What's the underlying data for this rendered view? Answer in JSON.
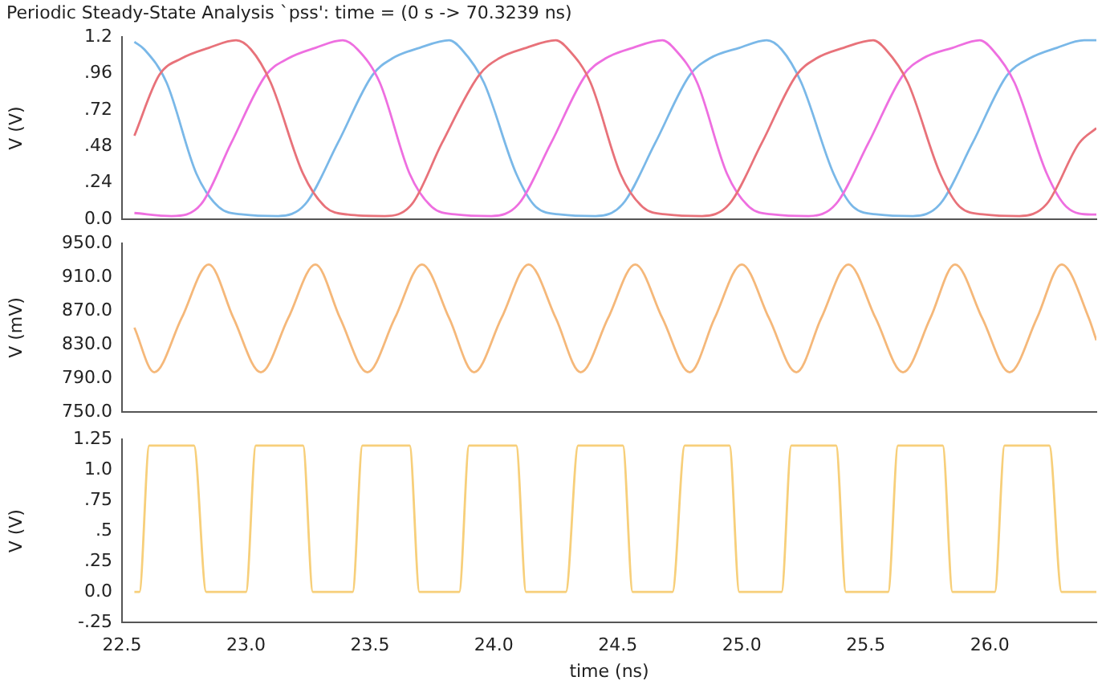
{
  "chart_data": [
    {
      "type": "line",
      "title": "Periodic Steady-State Analysis `pss': time = (0 s -> 70.3239 ns)",
      "ylabel": "V (V)",
      "xlim": [
        22.5,
        26.43
      ],
      "ylim": [
        0,
        1.2
      ],
      "yticks": [
        {
          "value": 0,
          "label": "0.0"
        },
        {
          "value": 0.24,
          "label": ".24"
        },
        {
          "value": 0.48,
          "label": ".48"
        },
        {
          "value": 0.72,
          "label": ".72"
        },
        {
          "value": 0.96,
          "label": ".96"
        },
        {
          "value": 1.2,
          "label": "1.2"
        }
      ],
      "tick_labels": "y",
      "series": [
        {
          "color": "#e8727a",
          "x": [
            22.55,
            22.65,
            22.74,
            22.85,
            22.96,
            23.02,
            23.1,
            23.23,
            23.32,
            23.41,
            23.56,
            23.67,
            23.79,
            23.94,
            24.02,
            24.13,
            24.25,
            24.3,
            24.39,
            24.51,
            24.6,
            24.7,
            24.84,
            24.95,
            25.08,
            25.22,
            25.3,
            25.41,
            25.53,
            25.58,
            25.67,
            25.8,
            25.88,
            25.98,
            26.12,
            26.23,
            26.36,
            26.43
          ],
          "values": [
            0.55,
            0.95,
            1.06,
            1.13,
            1.18,
            1.12,
            0.9,
            0.3,
            0.08,
            0.03,
            0.02,
            0.1,
            0.5,
            0.95,
            1.06,
            1.13,
            1.18,
            1.12,
            0.9,
            0.3,
            0.08,
            0.03,
            0.02,
            0.1,
            0.5,
            0.95,
            1.06,
            1.13,
            1.18,
            1.12,
            0.9,
            0.3,
            0.08,
            0.03,
            0.02,
            0.1,
            0.5,
            0.6
          ]
        },
        {
          "color": "#ee6fe0",
          "x": [
            22.55,
            22.7,
            22.82,
            22.94,
            23.08,
            23.17,
            23.28,
            23.39,
            23.45,
            23.54,
            23.66,
            23.75,
            23.85,
            23.99,
            24.1,
            24.23,
            24.37,
            24.45,
            24.56,
            24.68,
            24.73,
            24.82,
            24.94,
            25.03,
            25.13,
            25.27,
            25.38,
            25.51,
            25.65,
            25.73,
            25.85,
            25.96,
            26.01,
            26.1,
            26.23,
            26.31,
            26.41,
            26.43
          ],
          "values": [
            0.04,
            0.02,
            0.1,
            0.5,
            0.95,
            1.06,
            1.13,
            1.18,
            1.12,
            0.9,
            0.3,
            0.08,
            0.03,
            0.02,
            0.1,
            0.5,
            0.95,
            1.06,
            1.13,
            1.18,
            1.12,
            0.9,
            0.3,
            0.08,
            0.03,
            0.02,
            0.1,
            0.5,
            0.95,
            1.06,
            1.13,
            1.18,
            1.12,
            0.9,
            0.3,
            0.08,
            0.03,
            0.03
          ]
        },
        {
          "color": "#7ab8e8",
          "x": [
            22.55,
            22.59,
            22.68,
            22.8,
            22.89,
            22.99,
            23.13,
            23.24,
            23.37,
            23.51,
            23.59,
            23.7,
            23.82,
            23.87,
            23.96,
            24.09,
            24.17,
            24.27,
            24.41,
            24.52,
            24.65,
            24.79,
            24.87,
            24.99,
            25.1,
            25.16,
            25.24,
            25.37,
            25.45,
            25.55,
            25.69,
            25.8,
            25.93,
            26.07,
            26.16,
            26.27,
            26.38,
            26.43
          ],
          "values": [
            1.17,
            1.12,
            0.9,
            0.3,
            0.08,
            0.03,
            0.02,
            0.1,
            0.5,
            0.95,
            1.06,
            1.13,
            1.18,
            1.12,
            0.9,
            0.3,
            0.08,
            0.03,
            0.02,
            0.1,
            0.5,
            0.95,
            1.06,
            1.13,
            1.18,
            1.12,
            0.9,
            0.3,
            0.08,
            0.03,
            0.02,
            0.1,
            0.5,
            0.95,
            1.06,
            1.13,
            1.18,
            1.18
          ]
        }
      ]
    },
    {
      "type": "line",
      "ylabel": "V (mV)",
      "xlim": [
        22.5,
        26.43
      ],
      "ylim": [
        750,
        950
      ],
      "yticks": [
        {
          "value": 750,
          "label": "750.0"
        },
        {
          "value": 790,
          "label": "790.0"
        },
        {
          "value": 830,
          "label": "830.0"
        },
        {
          "value": 870,
          "label": "870.0"
        },
        {
          "value": 910,
          "label": "910.0"
        },
        {
          "value": 950,
          "label": "950.0"
        }
      ],
      "tick_labels": "y",
      "series": [
        {
          "color": "#f5b87a",
          "x": [
            22.55,
            22.63,
            22.74,
            22.85,
            22.95,
            23.06,
            23.17,
            23.28,
            23.38,
            23.49,
            23.6,
            23.71,
            23.82,
            23.92,
            24.03,
            24.14,
            24.25,
            24.35,
            24.46,
            24.57,
            24.68,
            24.79,
            24.89,
            25.0,
            25.11,
            25.22,
            25.32,
            25.43,
            25.54,
            25.65,
            25.76,
            25.86,
            25.97,
            26.08,
            26.19,
            26.29,
            26.4,
            26.43
          ],
          "values": [
            850,
            797,
            861,
            925,
            861,
            797,
            861,
            925,
            861,
            797,
            861,
            925,
            861,
            797,
            861,
            925,
            861,
            797,
            861,
            925,
            861,
            797,
            861,
            925,
            861,
            797,
            861,
            925,
            861,
            797,
            861,
            925,
            861,
            797,
            861,
            925,
            861,
            835
          ]
        }
      ]
    },
    {
      "type": "line",
      "ylabel": "V (V)",
      "xlabel": "time (ns)",
      "xlim": [
        22.5,
        26.43
      ],
      "xticks": [
        {
          "value": 22.5,
          "label": "22.5"
        },
        {
          "value": 23,
          "label": "23.0"
        },
        {
          "value": 23.5,
          "label": "23.5"
        },
        {
          "value": 24,
          "label": "24.0"
        },
        {
          "value": 24.5,
          "label": "24.5"
        },
        {
          "value": 25,
          "label": "25.0"
        },
        {
          "value": 25.5,
          "label": "25.5"
        },
        {
          "value": 26,
          "label": "26.0"
        }
      ],
      "ylim": [
        -0.25,
        1.25
      ],
      "yticks": [
        {
          "value": -0.25,
          "label": "-.25"
        },
        {
          "value": 0,
          "label": "0.0"
        },
        {
          "value": 0.25,
          "label": ".25"
        },
        {
          "value": 0.5,
          "label": ".5"
        },
        {
          "value": 0.75,
          "label": ".75"
        },
        {
          "value": 1,
          "label": "1.0"
        },
        {
          "value": 1.25,
          "label": "1.25"
        }
      ],
      "series": [
        {
          "color": "#f7cf7a",
          "x": [
            22.55,
            22.57,
            22.61,
            22.79,
            22.84,
            23.0,
            23.04,
            23.23,
            23.27,
            23.43,
            23.47,
            23.66,
            23.7,
            23.86,
            23.9,
            24.09,
            24.13,
            24.29,
            24.34,
            24.52,
            24.56,
            24.72,
            24.77,
            24.95,
            24.99,
            25.16,
            25.2,
            25.38,
            25.42,
            25.59,
            25.63,
            25.81,
            25.85,
            26.02,
            26.06,
            26.24,
            26.29,
            26.43
          ],
          "values": [
            0,
            0,
            1.2,
            1.2,
            0,
            0,
            1.2,
            1.2,
            0,
            0,
            1.2,
            1.2,
            0,
            0,
            1.2,
            1.2,
            0,
            0,
            1.2,
            1.2,
            0,
            0,
            1.2,
            1.2,
            0,
            0,
            1.2,
            1.2,
            0,
            0,
            1.2,
            1.2,
            0,
            0,
            1.2,
            1.2,
            0,
            0
          ]
        }
      ]
    }
  ]
}
